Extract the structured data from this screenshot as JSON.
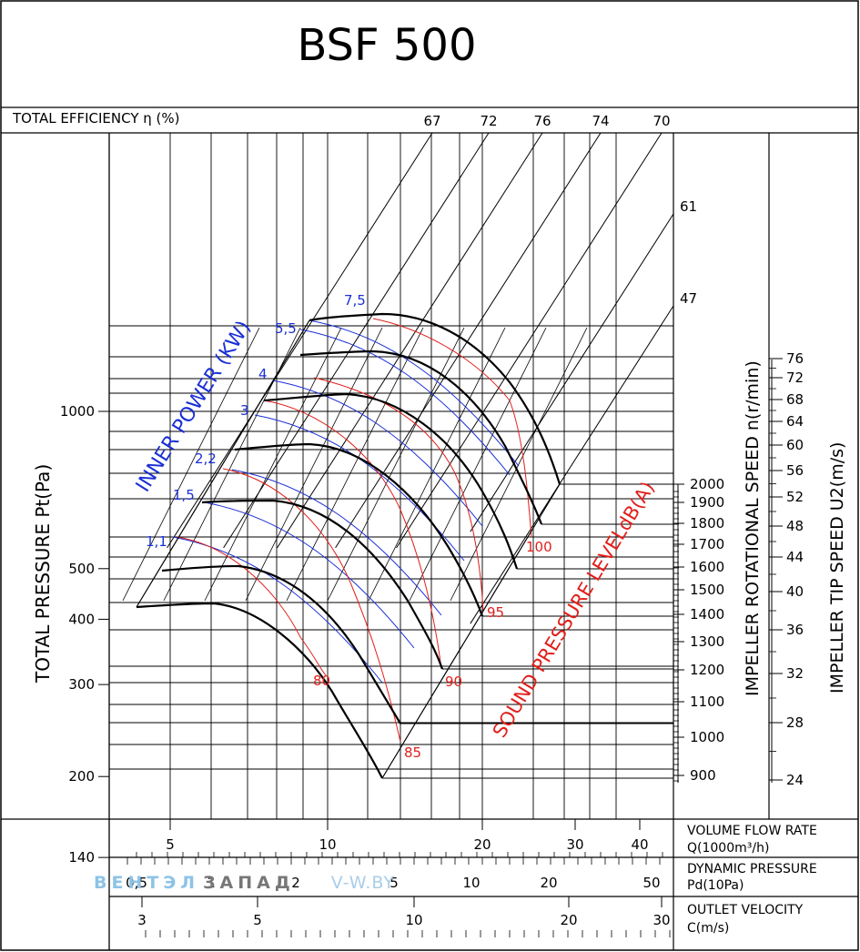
{
  "title": "BSF 500",
  "chart_data": {
    "type": "fan-performance-curve",
    "title": "BSF 500",
    "efficiency": {
      "label": "TOTAL EFFICIENCY η (%)",
      "top_labels": [
        "67",
        "72",
        "76",
        "74",
        "70"
      ],
      "side_labels": [
        "61",
        "47"
      ]
    },
    "y_axis": {
      "label": "TOTAL PRESSURE Pt(Pa)",
      "unit": "Pa",
      "scale": "log",
      "ticks": [
        "1000",
        "500",
        "400",
        "300",
        "200",
        "140"
      ]
    },
    "x_axes": [
      {
        "label_line1": "VOLUME FLOW RATE",
        "label_line2": "Q(1000m³/h)",
        "scale": "log",
        "ticks": [
          "5",
          "10",
          "20",
          "30",
          "40"
        ]
      },
      {
        "label_line1": "DYNAMIC PRESSURE",
        "label_line2": "Pd(10Pa)",
        "scale": "log",
        "ticks": [
          "0,5",
          "1",
          "2",
          "5",
          "10",
          "20",
          "50"
        ]
      },
      {
        "label_line1": "OUTLET VELOCITY",
        "label_line2": "C(m/s)",
        "scale": "log",
        "ticks": [
          "3",
          "5",
          "10",
          "20",
          "30"
        ]
      }
    ],
    "inner_power": {
      "label": "INNER POWER (KW)",
      "values": [
        "7,5",
        "5,5",
        "4",
        "3",
        "2,2",
        "1,5",
        "1,1"
      ]
    },
    "sound_pressure": {
      "label": "SOUND PRESSURE LEVELdB(A)",
      "values": [
        "100",
        "95",
        "90",
        "85",
        "80"
      ]
    },
    "rotational_speed": {
      "label": "IMPELLER ROTATIONAL SPEED n(r/min)",
      "ticks": [
        "2000",
        "1900",
        "1800",
        "1700",
        "1600",
        "1500",
        "1400",
        "1300",
        "1200",
        "1100",
        "1000",
        "900"
      ]
    },
    "tip_speed": {
      "label": "IMPELLER TIP SPEED U2(m/s)",
      "ticks": [
        "76",
        "72",
        "68",
        "64",
        "60",
        "56",
        "52",
        "48",
        "44",
        "40",
        "36",
        "32",
        "28",
        "24"
      ]
    },
    "speed_curves_rpm": [
      2000,
      1800,
      1600,
      1400,
      1200,
      1000,
      900
    ]
  },
  "watermark": {
    "part1": "ВЕНТЭЛ",
    "part2": "ЗАПАД",
    "part3": "V-W.BY"
  }
}
